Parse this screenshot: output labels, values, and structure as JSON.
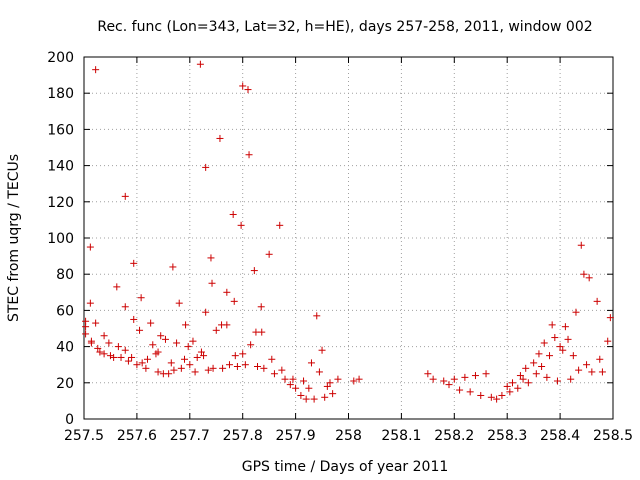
{
  "chart_data": {
    "type": "scatter",
    "title": "Rec. func (Lon=343, Lat=32, h=HE), days 257-258, 2011, window 002",
    "xlabel": "GPS time / Days of year 2011",
    "ylabel": "STEC from uqrg / TECUs",
    "xlim": [
      257.5,
      258.5
    ],
    "ylim": [
      0,
      200
    ],
    "grid": true,
    "marker": "+",
    "color": "#cc0000",
    "x_ticks": [
      "257.5",
      "257.6",
      "257.7",
      "257.8",
      "257.9",
      "258",
      "258.1",
      "258.2",
      "258.3",
      "258.4",
      "258.5"
    ],
    "y_ticks": [
      "0",
      "20",
      "40",
      "60",
      "80",
      "100",
      "120",
      "140",
      "160",
      "180",
      "200"
    ],
    "series": [
      {
        "name": "STEC",
        "points": [
          [
            257.503,
            54
          ],
          [
            257.503,
            51
          ],
          [
            257.503,
            47
          ],
          [
            257.512,
            64
          ],
          [
            257.512,
            95
          ],
          [
            257.514,
            43
          ],
          [
            257.514,
            42
          ],
          [
            257.522,
            193
          ],
          [
            257.522,
            53
          ],
          [
            257.526,
            39
          ],
          [
            257.53,
            37
          ],
          [
            257.538,
            36
          ],
          [
            257.538,
            46
          ],
          [
            257.547,
            42
          ],
          [
            257.55,
            35
          ],
          [
            257.556,
            34
          ],
          [
            257.562,
            73
          ],
          [
            257.565,
            40
          ],
          [
            257.57,
            34
          ],
          [
            257.578,
            123
          ],
          [
            257.578,
            62
          ],
          [
            257.578,
            38
          ],
          [
            257.584,
            32
          ],
          [
            257.59,
            34
          ],
          [
            257.594,
            86
          ],
          [
            257.594,
            55
          ],
          [
            257.6,
            30
          ],
          [
            257.605,
            49
          ],
          [
            257.608,
            67
          ],
          [
            257.61,
            31
          ],
          [
            257.617,
            28
          ],
          [
            257.62,
            33
          ],
          [
            257.626,
            53
          ],
          [
            257.63,
            41
          ],
          [
            257.636,
            36
          ],
          [
            257.64,
            26
          ],
          [
            257.64,
            37
          ],
          [
            257.645,
            46
          ],
          [
            257.65,
            25
          ],
          [
            257.654,
            44
          ],
          [
            257.66,
            25
          ],
          [
            257.665,
            31
          ],
          [
            257.668,
            84
          ],
          [
            257.67,
            27
          ],
          [
            257.675,
            42
          ],
          [
            257.68,
            64
          ],
          [
            257.684,
            28
          ],
          [
            257.69,
            33
          ],
          [
            257.692,
            52
          ],
          [
            257.697,
            40
          ],
          [
            257.7,
            30
          ],
          [
            257.706,
            43
          ],
          [
            257.71,
            26
          ],
          [
            257.714,
            34
          ],
          [
            257.72,
            196
          ],
          [
            257.722,
            37
          ],
          [
            257.726,
            35
          ],
          [
            257.73,
            139
          ],
          [
            257.73,
            59
          ],
          [
            257.735,
            27
          ],
          [
            257.74,
            89
          ],
          [
            257.742,
            75
          ],
          [
            257.744,
            28
          ],
          [
            257.75,
            49
          ],
          [
            257.757,
            155
          ],
          [
            257.76,
            52
          ],
          [
            257.762,
            28
          ],
          [
            257.77,
            70
          ],
          [
            257.77,
            52
          ],
          [
            257.775,
            30
          ],
          [
            257.782,
            113
          ],
          [
            257.784,
            65
          ],
          [
            257.786,
            35
          ],
          [
            257.79,
            29
          ],
          [
            257.797,
            107
          ],
          [
            257.8,
            184
          ],
          [
            257.8,
            36
          ],
          [
            257.805,
            30
          ],
          [
            257.81,
            182
          ],
          [
            257.812,
            146
          ],
          [
            257.815,
            41
          ],
          [
            257.822,
            82
          ],
          [
            257.825,
            48
          ],
          [
            257.828,
            29
          ],
          [
            257.835,
            62
          ],
          [
            257.836,
            48
          ],
          [
            257.84,
            28
          ],
          [
            257.85,
            91
          ],
          [
            257.855,
            33
          ],
          [
            257.86,
            25
          ],
          [
            257.87,
            107
          ],
          [
            257.874,
            27
          ],
          [
            257.88,
            22
          ],
          [
            257.89,
            19
          ],
          [
            257.895,
            22
          ],
          [
            257.9,
            17
          ],
          [
            257.91,
            13
          ],
          [
            257.915,
            21
          ],
          [
            257.92,
            11
          ],
          [
            257.925,
            17
          ],
          [
            257.93,
            31
          ],
          [
            257.935,
            11
          ],
          [
            257.94,
            57
          ],
          [
            257.945,
            26
          ],
          [
            257.95,
            38
          ],
          [
            257.955,
            12
          ],
          [
            257.96,
            18
          ],
          [
            257.965,
            20
          ],
          [
            257.97,
            14
          ],
          [
            257.98,
            22
          ],
          [
            258.01,
            21
          ],
          [
            258.02,
            22
          ],
          [
            258.15,
            25
          ],
          [
            258.16,
            22
          ],
          [
            258.18,
            21
          ],
          [
            258.19,
            19
          ],
          [
            258.2,
            22
          ],
          [
            258.21,
            16
          ],
          [
            258.22,
            23
          ],
          [
            258.23,
            15
          ],
          [
            258.24,
            24
          ],
          [
            258.25,
            13
          ],
          [
            258.26,
            25
          ],
          [
            258.27,
            12
          ],
          [
            258.28,
            11
          ],
          [
            258.29,
            13
          ],
          [
            258.3,
            18
          ],
          [
            258.305,
            15
          ],
          [
            258.31,
            20
          ],
          [
            258.32,
            17
          ],
          [
            258.325,
            24
          ],
          [
            258.33,
            22
          ],
          [
            258.335,
            28
          ],
          [
            258.34,
            20
          ],
          [
            258.35,
            31
          ],
          [
            258.355,
            25
          ],
          [
            258.36,
            36
          ],
          [
            258.365,
            29
          ],
          [
            258.37,
            42
          ],
          [
            258.375,
            23
          ],
          [
            258.38,
            35
          ],
          [
            258.385,
            52
          ],
          [
            258.39,
            45
          ],
          [
            258.395,
            21
          ],
          [
            258.4,
            40
          ],
          [
            258.405,
            38
          ],
          [
            258.41,
            51
          ],
          [
            258.415,
            44
          ],
          [
            258.42,
            22
          ],
          [
            258.425,
            35
          ],
          [
            258.43,
            59
          ],
          [
            258.435,
            27
          ],
          [
            258.44,
            96
          ],
          [
            258.445,
            80
          ],
          [
            258.45,
            30
          ],
          [
            258.455,
            78
          ],
          [
            258.46,
            26
          ],
          [
            258.47,
            65
          ],
          [
            258.475,
            33
          ],
          [
            258.48,
            26
          ],
          [
            258.49,
            43
          ],
          [
            258.495,
            56
          ]
        ]
      }
    ]
  }
}
